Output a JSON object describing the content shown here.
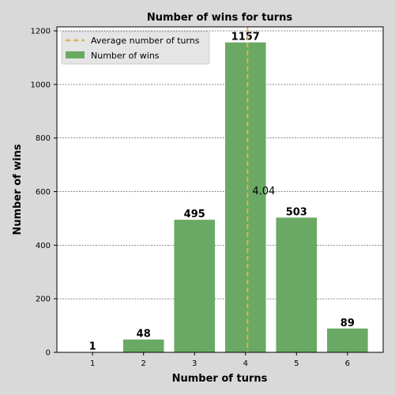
{
  "chart_data": {
    "type": "bar",
    "title": "Number of wins for turns",
    "xlabel": "Number of turns",
    "ylabel": "Number of wins",
    "categories": [
      1,
      2,
      3,
      4,
      5,
      6
    ],
    "values": [
      1,
      48,
      495,
      1157,
      503,
      89
    ],
    "series": [
      {
        "name": "Number of wins",
        "values": [
          1,
          48,
          495,
          1157,
          503,
          89
        ],
        "color": "#6aa964"
      }
    ],
    "reference_line": {
      "name": "Average number of turns",
      "x": 4.04,
      "label": "4.04",
      "color": "#d9b45a",
      "style": "dashed"
    },
    "xlim": [
      0.3,
      6.7
    ],
    "ylim": [
      0,
      1215
    ],
    "yticks": [
      0,
      200,
      400,
      600,
      800,
      1000,
      1200
    ],
    "xticks": [
      1,
      2,
      3,
      4,
      5,
      6
    ],
    "grid": "y-dashed",
    "legend_position": "top-left"
  }
}
